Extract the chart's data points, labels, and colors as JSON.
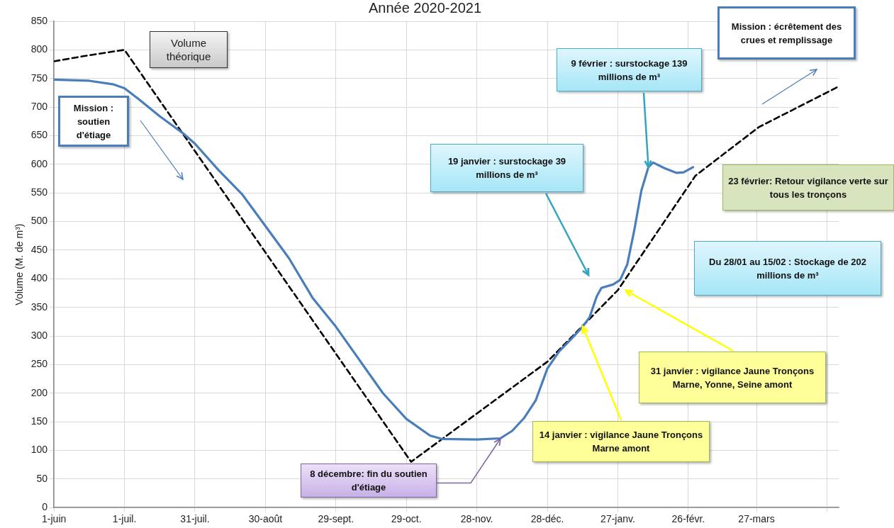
{
  "chart_data": {
    "type": "line",
    "title": "Année 2020-2021",
    "ylabel": "Volume (M. de m³)",
    "xlim": [
      "2020-06-01",
      "2021-05-01"
    ],
    "xticks": [
      {
        "value": "2020-06-01",
        "label": "1-juin"
      },
      {
        "value": "2020-07-01",
        "label": "1-juil."
      },
      {
        "value": "2020-07-31",
        "label": "31-juil."
      },
      {
        "value": "2020-08-30",
        "label": "30-août"
      },
      {
        "value": "2020-09-29",
        "label": "29-sept."
      },
      {
        "value": "2020-10-29",
        "label": "29-oct."
      },
      {
        "value": "2020-11-28",
        "label": "28-nov."
      },
      {
        "value": "2020-12-28",
        "label": "28-déc."
      },
      {
        "value": "2021-01-27",
        "label": "27-janv."
      },
      {
        "value": "2021-02-26",
        "label": "26-févr."
      },
      {
        "value": "2021-03-27",
        "label": "27-mars"
      },
      {
        "value": "2021-04-26",
        "label": null
      }
    ],
    "ylim": [
      0,
      850
    ],
    "yticks": [
      0,
      50,
      100,
      150,
      200,
      250,
      300,
      350,
      400,
      450,
      500,
      550,
      600,
      650,
      700,
      750,
      800,
      850
    ],
    "grid": true,
    "legend": false,
    "marker": "none",
    "series": [
      {
        "color": "#4a7ebb",
        "line_style": "solid",
        "x": [
          "2020-06-01",
          "2020-06-16",
          "2020-06-26",
          "2020-07-01",
          "2020-07-07",
          "2020-07-16",
          "2020-07-26",
          "2020-07-31",
          "2020-08-10",
          "2020-08-20",
          "2020-08-30",
          "2020-09-09",
          "2020-09-19",
          "2020-09-29",
          "2020-10-09",
          "2020-10-19",
          "2020-10-29",
          "2020-11-08",
          "2020-11-13",
          "2020-11-28",
          "2020-12-08",
          "2020-12-13",
          "2020-12-18",
          "2020-12-23",
          "2020-12-28",
          "2021-01-02",
          "2021-01-07",
          "2021-01-12",
          "2021-01-15",
          "2021-01-18",
          "2021-01-20",
          "2021-01-25",
          "2021-01-28",
          "2021-01-31",
          "2021-02-03",
          "2021-02-06",
          "2021-02-09",
          "2021-02-11",
          "2021-02-16",
          "2021-02-21",
          "2021-02-24",
          "2021-02-28"
        ],
        "values": [
          748,
          746,
          740,
          733,
          714,
          684,
          654,
          636,
          590,
          548,
          492,
          436,
          367,
          316,
          258,
          200,
          155,
          126,
          120,
          119,
          121,
          134,
          156,
          187,
          243,
          273,
          294,
          316,
          333,
          369,
          384,
          390,
          398,
          425,
          485,
          554,
          595,
          603,
          593,
          585,
          586,
          595
        ]
      },
      {
        "name": "Volume théorique",
        "color": "#000000",
        "line_style": "dashed",
        "x": [
          "2020-06-01",
          "2020-06-15",
          "2020-07-01",
          "2020-10-31",
          "2020-12-28",
          "2021-01-27",
          "2021-03-01",
          "2021-03-28",
          "2021-05-01"
        ],
        "values": [
          780,
          790,
          800,
          80,
          255,
          380,
          580,
          665,
          736
        ]
      }
    ],
    "annotations": [
      "Mission : soutien d'étiage",
      "19 janvier : surstockage 39 millions de m³",
      {
        "text": "9 février : surstockage 139 millions de m³",
        "x": "2021-02-09",
        "y": 595
      },
      "Mission : écrêtement des crues et remplissage",
      "23 février: Retour vigilance verte sur tous les tronçons",
      "Du 28/01 au 15/02 : Stockage de 202 millions de m³",
      "31 janvier : vigilance Jaune Tronçons Marne, Yonne, Seine amont",
      {
        "text": "14 janvier : vigilance Jaune Tronçons Marne amont",
        "x": "2021-01-12",
        "y": 316
      },
      {
        "text": "8 décembre: fin du soutien d'étiage",
        "x": "2020-12-08",
        "y": 121
      }
    ]
  }
}
